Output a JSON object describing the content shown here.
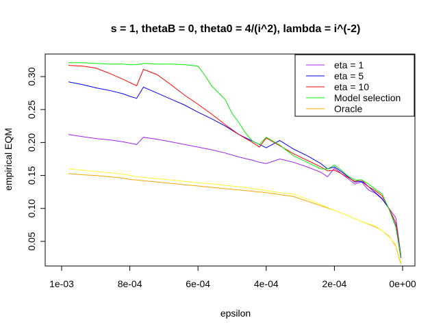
{
  "chart_data": {
    "type": "line",
    "title": "s = 1, thetaB = 0, theta0 = 4/(i^2), lambda = i^(-2)",
    "xlabel": "epsilon",
    "ylabel": "empirical EQM",
    "xlim": [
      0.001,
      0
    ],
    "ylim": [
      0.05,
      0.3
    ],
    "x_reversed": true,
    "grid": false,
    "legend_position": "top-right",
    "xticks": [
      {
        "value": 0.001,
        "label": "1e-03"
      },
      {
        "value": 0.0008,
        "label": "8e-04"
      },
      {
        "value": 0.0006,
        "label": "6e-04"
      },
      {
        "value": 0.0004,
        "label": "4e-04"
      },
      {
        "value": 0.0002,
        "label": "2e-04"
      },
      {
        "value": 0.0,
        "label": "0e+00"
      }
    ],
    "yticks": [
      {
        "value": 0.05,
        "label": "0.05"
      },
      {
        "value": 0.1,
        "label": "0.10"
      },
      {
        "value": 0.15,
        "label": "0.15"
      },
      {
        "value": 0.2,
        "label": "0.20"
      },
      {
        "value": 0.25,
        "label": "0.25"
      },
      {
        "value": 0.3,
        "label": "0.30"
      }
    ],
    "series": [
      {
        "name": "eta = 1",
        "color": "#a020f0",
        "in_legend": true,
        "x": [
          0.00098,
          0.00094,
          0.0009,
          0.00086,
          0.00082,
          0.0008,
          0.00078,
          0.00076,
          0.00072,
          0.00068,
          0.00064,
          0.0006,
          0.00056,
          0.00052,
          0.00048,
          0.00044,
          0.00042,
          0.0004,
          0.00036,
          0.00032,
          0.00028,
          0.00024,
          0.00022,
          0.0002,
          0.00018,
          0.00016,
          0.00014,
          0.00012,
          0.0001,
          8e-05,
          6e-05,
          4e-05,
          2e-05,
          5e-06
        ],
        "y": [
          0.212,
          0.209,
          0.206,
          0.204,
          0.201,
          0.199,
          0.197,
          0.208,
          0.205,
          0.201,
          0.197,
          0.193,
          0.189,
          0.184,
          0.178,
          0.173,
          0.17,
          0.168,
          0.175,
          0.17,
          0.163,
          0.155,
          0.148,
          0.161,
          0.153,
          0.145,
          0.137,
          0.14,
          0.128,
          0.123,
          0.114,
          0.1,
          0.086,
          0.03
        ]
      },
      {
        "name": "eta = 5",
        "color": "#0000ff",
        "in_legend": true,
        "x": [
          0.00098,
          0.00094,
          0.0009,
          0.00086,
          0.00082,
          0.0008,
          0.00078,
          0.00076,
          0.00072,
          0.00068,
          0.00064,
          0.0006,
          0.00056,
          0.00052,
          0.00048,
          0.00044,
          0.00042,
          0.0004,
          0.00036,
          0.00032,
          0.00028,
          0.00024,
          0.00022,
          0.0002,
          0.00018,
          0.00016,
          0.00014,
          0.00012,
          0.0001,
          8e-05,
          6e-05,
          4e-05,
          2e-05,
          5e-06
        ],
        "y": [
          0.292,
          0.288,
          0.283,
          0.279,
          0.274,
          0.27,
          0.267,
          0.284,
          0.275,
          0.266,
          0.257,
          0.246,
          0.236,
          0.225,
          0.212,
          0.202,
          0.197,
          0.192,
          0.203,
          0.19,
          0.18,
          0.168,
          0.16,
          0.163,
          0.156,
          0.148,
          0.14,
          0.141,
          0.133,
          0.124,
          0.115,
          0.1,
          0.073,
          0.025
        ]
      },
      {
        "name": "eta = 10",
        "color": "#ff0000",
        "in_legend": true,
        "x": [
          0.00098,
          0.00094,
          0.0009,
          0.00086,
          0.00082,
          0.0008,
          0.00078,
          0.00076,
          0.00072,
          0.00068,
          0.00064,
          0.0006,
          0.00056,
          0.00052,
          0.00048,
          0.00044,
          0.00042,
          0.0004,
          0.00036,
          0.00032,
          0.00028,
          0.00024,
          0.00022,
          0.0002,
          0.00018,
          0.00016,
          0.00014,
          0.00012,
          0.0001,
          8e-05,
          6e-05,
          4e-05,
          2e-05,
          5e-06
        ],
        "y": [
          0.317,
          0.316,
          0.313,
          0.305,
          0.296,
          0.291,
          0.286,
          0.311,
          0.303,
          0.288,
          0.272,
          0.258,
          0.243,
          0.227,
          0.212,
          0.2,
          0.193,
          0.207,
          0.195,
          0.183,
          0.173,
          0.163,
          0.157,
          0.158,
          0.153,
          0.147,
          0.141,
          0.143,
          0.133,
          0.127,
          0.119,
          0.1,
          0.078,
          0.028
        ]
      },
      {
        "name": "Model selection",
        "color": "#00ee00",
        "in_legend": true,
        "x": [
          0.00098,
          0.00094,
          0.0009,
          0.00086,
          0.00082,
          0.0008,
          0.00078,
          0.00076,
          0.00072,
          0.00068,
          0.00064,
          0.0006,
          0.00058,
          0.00056,
          0.00052,
          0.0005,
          0.00048,
          0.00046,
          0.00044,
          0.00042,
          0.0004,
          0.00036,
          0.00032,
          0.00028,
          0.00024,
          0.00022,
          0.0002,
          0.00018,
          0.00016,
          0.00014,
          0.00012,
          0.0001,
          8e-05,
          6e-05,
          4e-05,
          2e-05,
          5e-06
        ],
        "y": [
          0.321,
          0.321,
          0.32,
          0.319,
          0.319,
          0.318,
          0.318,
          0.32,
          0.319,
          0.319,
          0.318,
          0.316,
          0.302,
          0.286,
          0.265,
          0.244,
          0.23,
          0.214,
          0.202,
          0.197,
          0.208,
          0.196,
          0.18,
          0.17,
          0.16,
          0.16,
          0.166,
          0.158,
          0.149,
          0.143,
          0.143,
          0.137,
          0.129,
          0.122,
          0.099,
          0.072,
          0.028
        ]
      },
      {
        "name": "Oracle",
        "color": "#ffa500",
        "in_legend": true,
        "x": [
          0.00098,
          0.00094,
          0.0009,
          0.00086,
          0.00082,
          0.0008,
          0.00078,
          0.00076,
          0.00072,
          0.00068,
          0.00064,
          0.0006,
          0.00056,
          0.00052,
          0.00048,
          0.00044,
          0.00042,
          0.0004,
          0.00036,
          0.00032,
          0.00028,
          0.00024,
          0.0002,
          0.00016,
          0.00012,
          0.0001,
          8e-05,
          6e-05,
          4e-05,
          2e-05,
          5e-06
        ],
        "y": [
          0.153,
          0.151,
          0.15,
          0.148,
          0.146,
          0.144,
          0.143,
          0.142,
          0.14,
          0.138,
          0.136,
          0.134,
          0.132,
          0.13,
          0.128,
          0.126,
          0.125,
          0.124,
          0.121,
          0.118,
          0.111,
          0.104,
          0.097,
          0.089,
          0.08,
          0.076,
          0.072,
          0.066,
          0.058,
          0.043,
          0.015
        ]
      },
      {
        "name": "",
        "color": "#ffff33",
        "in_legend": false,
        "x": [
          0.00098,
          0.00094,
          0.0009,
          0.00086,
          0.00082,
          0.0008,
          0.00078,
          0.00076,
          0.00072,
          0.00068,
          0.00064,
          0.0006,
          0.00056,
          0.00052,
          0.00048,
          0.00044,
          0.0004,
          0.00036,
          0.00032,
          0.00028,
          0.00024,
          0.0002,
          0.00016,
          0.00012,
          8e-05,
          6e-05,
          4e-05,
          2e-05,
          5e-06
        ],
        "y": [
          0.16,
          0.158,
          0.156,
          0.154,
          0.152,
          0.15,
          0.148,
          0.147,
          0.145,
          0.143,
          0.141,
          0.139,
          0.137,
          0.135,
          0.133,
          0.13,
          0.127,
          0.124,
          0.122,
          0.114,
          0.106,
          0.097,
          0.089,
          0.08,
          0.073,
          0.066,
          0.057,
          0.045,
          0.018
        ]
      }
    ]
  }
}
